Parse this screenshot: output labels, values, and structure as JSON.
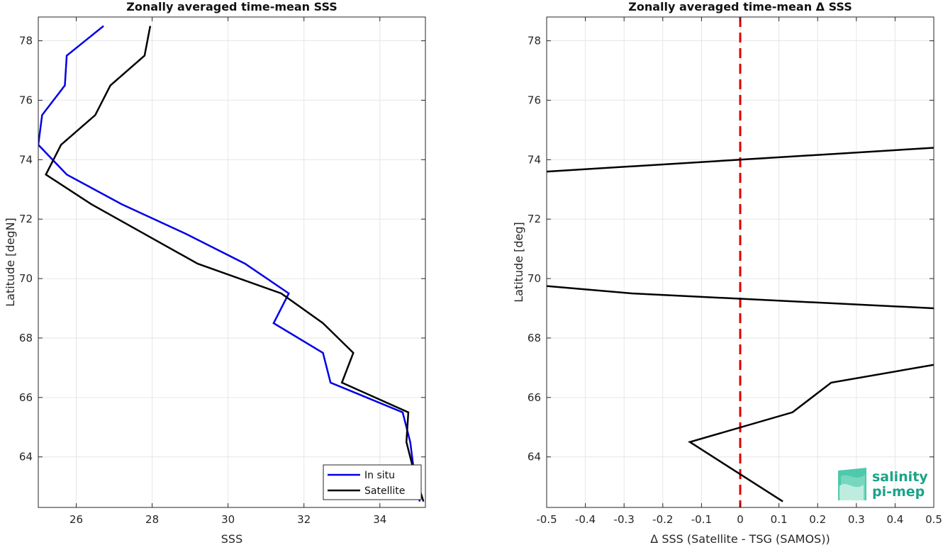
{
  "chart_data": [
    {
      "type": "line",
      "title": "Zonally averaged time-mean SSS",
      "xlabel": "SSS",
      "ylabel": "Latitude [degN]",
      "xlim": [
        25,
        35.2
      ],
      "ylim": [
        62.3,
        78.8
      ],
      "xticks": [
        26,
        28,
        30,
        32,
        34
      ],
      "yticks": [
        64,
        66,
        68,
        70,
        72,
        74,
        76,
        78
      ],
      "grid": true,
      "legend": "bottom-right",
      "series": [
        {
          "name": "In situ",
          "color": "#0000e6",
          "points": [
            [
              26.72,
              78.5
            ],
            [
              25.75,
              77.5
            ],
            [
              25.7,
              76.5
            ],
            [
              25.1,
              75.5
            ],
            [
              25.0,
              74.5
            ],
            [
              25.75,
              73.5
            ],
            [
              27.2,
              72.5
            ],
            [
              28.9,
              71.5
            ],
            [
              30.45,
              70.5
            ],
            [
              31.6,
              69.5
            ],
            [
              31.2,
              68.5
            ],
            [
              32.5,
              67.5
            ],
            [
              32.7,
              66.5
            ],
            [
              34.6,
              65.5
            ],
            [
              34.8,
              64.5
            ],
            [
              34.9,
              63.5
            ],
            [
              35.05,
              62.5
            ]
          ]
        },
        {
          "name": "Satellite",
          "color": "#000000",
          "points": [
            [
              27.95,
              78.5
            ],
            [
              27.8,
              77.5
            ],
            [
              26.9,
              76.5
            ],
            [
              26.5,
              75.5
            ],
            [
              25.6,
              74.5
            ],
            [
              25.2,
              73.5
            ],
            [
              26.4,
              72.5
            ],
            [
              27.8,
              71.5
            ],
            [
              29.2,
              70.5
            ],
            [
              31.4,
              69.5
            ],
            [
              32.5,
              68.5
            ],
            [
              33.3,
              67.5
            ],
            [
              33.0,
              66.5
            ],
            [
              34.75,
              65.5
            ],
            [
              34.7,
              64.5
            ],
            [
              34.9,
              63.5
            ],
            [
              35.15,
              62.5
            ]
          ]
        }
      ]
    },
    {
      "type": "line",
      "title": "Zonally averaged time-mean Δ SSS",
      "xlabel": "Δ SSS (Satellite - TSG (SAMOS))",
      "ylabel": "Latitude [deg]",
      "xlim": [
        -0.5,
        0.5
      ],
      "ylim": [
        62.3,
        78.8
      ],
      "xticks": [
        -0.5,
        -0.4,
        -0.3,
        -0.2,
        -0.1,
        0,
        0.1,
        0.2,
        0.3,
        0.4,
        0.5
      ],
      "xticklabels": [
        "-0.5",
        "-0.4",
        "-0.3",
        "-0.2",
        "-0.1",
        "0",
        "0.1",
        "0.2",
        "0.3",
        "0.4",
        "0.5"
      ],
      "yticks": [
        64,
        66,
        68,
        70,
        72,
        74,
        76,
        78
      ],
      "grid": true,
      "reference_line": {
        "x": 0,
        "color": "#e00000",
        "style": "dashed"
      },
      "series": [
        {
          "color": "#000000",
          "points": [
            [
              -0.5,
              73.6
            ],
            [
              0.5,
              74.4
            ]
          ]
        },
        {
          "color": "#000000",
          "points": [
            [
              -0.5,
              69.75
            ],
            [
              -0.28,
              69.5
            ],
            [
              0.5,
              69.0
            ]
          ]
        },
        {
          "color": "#000000",
          "points": [
            [
              0.5,
              67.1
            ],
            [
              0.235,
              66.5
            ],
            [
              0.135,
              65.5
            ],
            [
              -0.13,
              64.5
            ],
            [
              0.11,
              62.5
            ]
          ]
        }
      ]
    }
  ],
  "logo": {
    "line1": "salinity",
    "line2": "pi-mep",
    "color": "#1aa389"
  }
}
